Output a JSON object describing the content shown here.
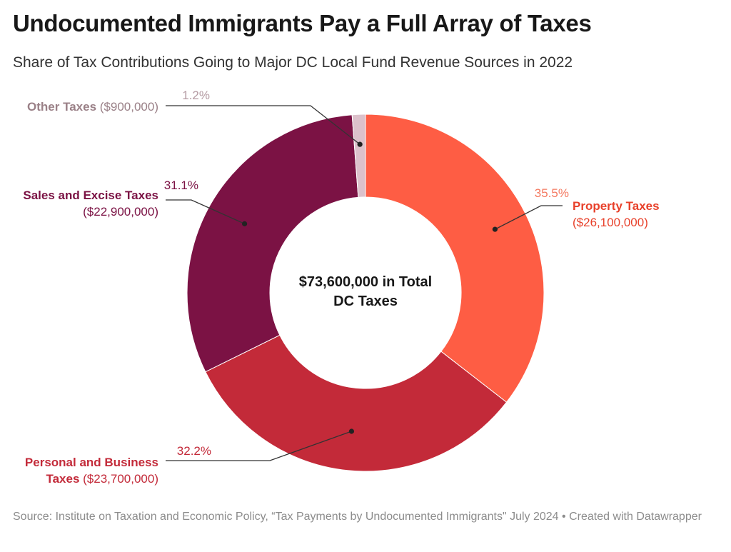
{
  "header": {
    "title": "Undocumented Immigrants Pay a Full Array of Taxes",
    "subtitle": "Share of Tax Contributions Going to Major DC Local Fund Revenue Sources in 2022"
  },
  "footer": {
    "source": "Source: Institute on Taxation and Economic Policy, “Tax Payments by Undocumented Immigrants\" July 2024 • Created with Datawrapper"
  },
  "chart_data": {
    "type": "pie",
    "donut": true,
    "center_label": [
      "$73,600,000 in Total",
      "DC Taxes"
    ],
    "slices": [
      {
        "name": "Property Taxes",
        "amount": "($26,100,000)",
        "share": 35.5,
        "label": "35.5%",
        "color": "#fe5d44",
        "label_color": "#e8412b",
        "pct_color": "#f4785f"
      },
      {
        "name": "Personal and Business Taxes",
        "name_lines": [
          "Personal and Business",
          "Taxes"
        ],
        "amount": "($23,700,000)",
        "share": 32.2,
        "label": "32.2%",
        "color": "#c32a39",
        "label_color": "#c32a39",
        "pct_color": "#c32a39"
      },
      {
        "name": "Sales and Excise Taxes",
        "amount": "($22,900,000)",
        "share": 31.1,
        "label": "31.1%",
        "color": "#7b1244",
        "label_color": "#7b1244",
        "pct_color": "#7b1244"
      },
      {
        "name": "Other Taxes",
        "amount": "($900,000)",
        "share": 1.2,
        "label": "1.2%",
        "color": "#dcc1cb",
        "label_color": "#9a8087",
        "pct_color": "#b49aa2"
      }
    ]
  }
}
